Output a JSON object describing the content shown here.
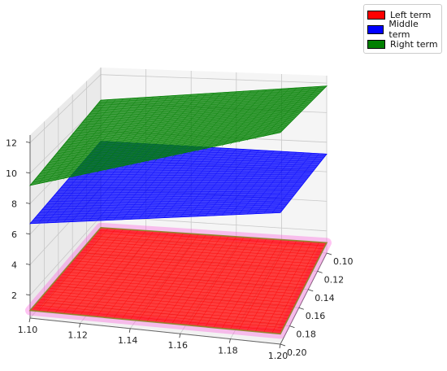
{
  "chart_data": {
    "type": "surface3d",
    "x_ticks": [
      "1.10",
      "1.12",
      "1.14",
      "1.16",
      "1.18",
      "1.20"
    ],
    "y_ticks": [
      "0.10",
      "0.12",
      "0.14",
      "0.16",
      "0.18",
      "0.20"
    ],
    "z_ticks": [
      "2",
      "4",
      "6",
      "8",
      "10",
      "12"
    ],
    "xlim": [
      1.1,
      1.2
    ],
    "ylim": [
      0.1,
      0.2
    ],
    "zlim": [
      0.5,
      12.5
    ],
    "grid": true,
    "legend_position": "top-right",
    "series": [
      {
        "name": "Left term",
        "color": "#ff0000",
        "corners": {
          "x1.10_y0.10": 1.2,
          "x1.20_y0.10": 1.2,
          "x1.20_y0.20": 1.0,
          "x1.10_y0.20": 1.0
        }
      },
      {
        "name": "Middle term",
        "color": "#0000ff",
        "corners": {
          "x1.10_y0.10": 7.3,
          "x1.20_y0.10": 7.2,
          "x1.20_y0.20": 6.9,
          "x1.10_y0.20": 6.7
        }
      },
      {
        "name": "Right term",
        "color": "#008000",
        "corners": {
          "x1.10_y0.10": 10.2,
          "x1.20_y0.10": 11.8,
          "x1.20_y0.20": 10.8,
          "x1.10_y0.20": 9.2
        }
      }
    ]
  }
}
